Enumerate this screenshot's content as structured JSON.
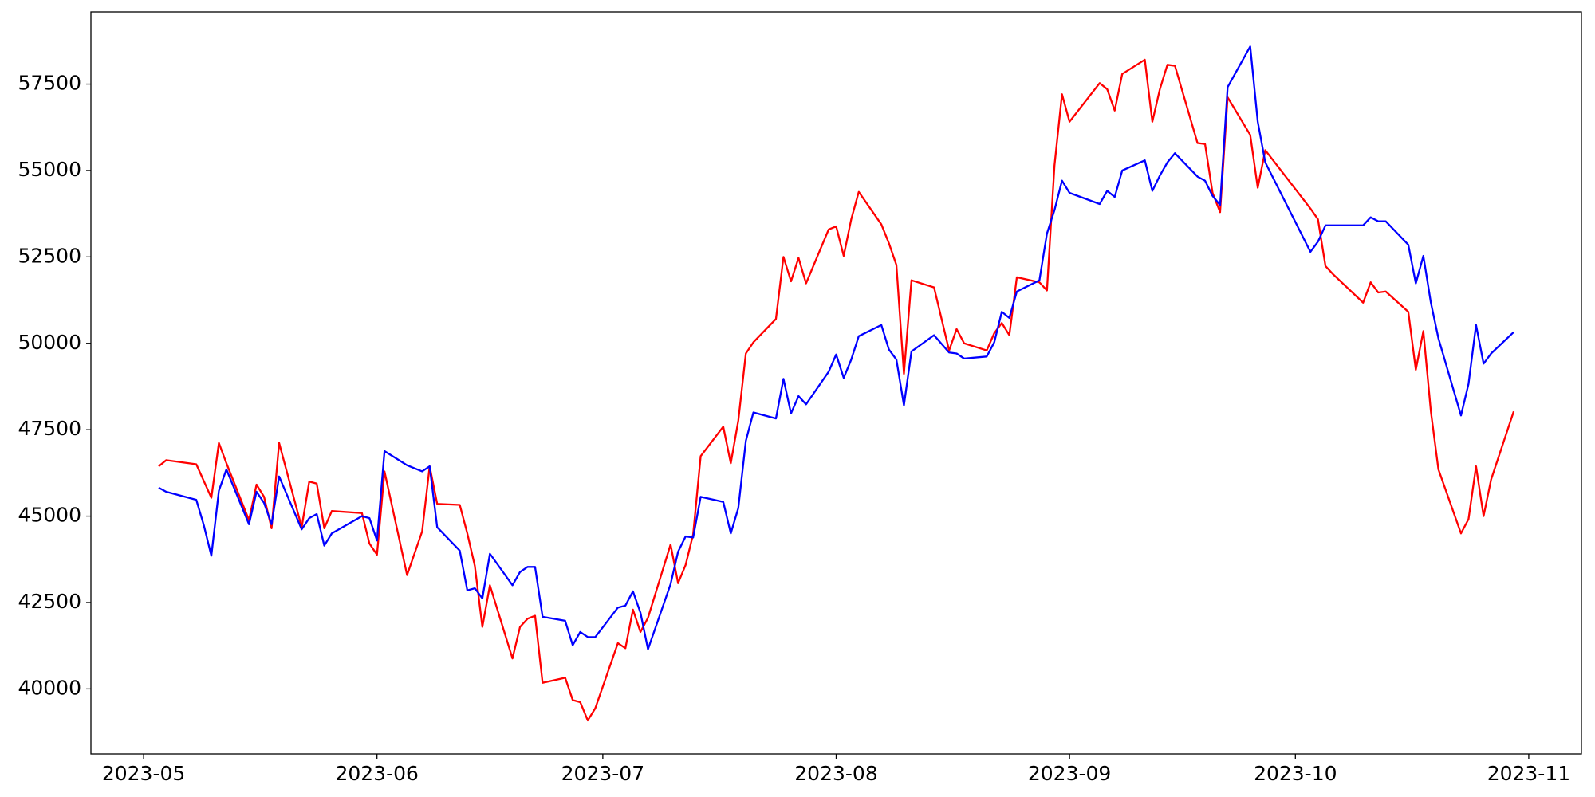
{
  "chart_data": {
    "type": "line",
    "x": [
      "2023-05-03",
      "2023-05-04",
      "2023-05-08",
      "2023-05-09",
      "2023-05-10",
      "2023-05-11",
      "2023-05-12",
      "2023-05-15",
      "2023-05-16",
      "2023-05-17",
      "2023-05-18",
      "2023-05-19",
      "2023-05-22",
      "2023-05-23",
      "2023-05-24",
      "2023-05-25",
      "2023-05-26",
      "2023-05-30",
      "2023-05-31",
      "2023-06-01",
      "2023-06-02",
      "2023-06-05",
      "2023-06-07",
      "2023-06-08",
      "2023-06-09",
      "2023-06-12",
      "2023-06-13",
      "2023-06-14",
      "2023-06-15",
      "2023-06-16",
      "2023-06-19",
      "2023-06-20",
      "2023-06-21",
      "2023-06-22",
      "2023-06-23",
      "2023-06-26",
      "2023-06-27",
      "2023-06-28",
      "2023-06-29",
      "2023-06-30",
      "2023-07-03",
      "2023-07-04",
      "2023-07-05",
      "2023-07-06",
      "2023-07-07",
      "2023-07-10",
      "2023-07-11",
      "2023-07-12",
      "2023-07-13",
      "2023-07-14",
      "2023-07-17",
      "2023-07-18",
      "2023-07-19",
      "2023-07-20",
      "2023-07-21",
      "2023-07-24",
      "2023-07-25",
      "2023-07-26",
      "2023-07-27",
      "2023-07-28",
      "2023-07-31",
      "2023-08-01",
      "2023-08-02",
      "2023-08-03",
      "2023-08-04",
      "2023-08-07",
      "2023-08-08",
      "2023-08-09",
      "2023-08-10",
      "2023-08-11",
      "2023-08-14",
      "2023-08-16",
      "2023-08-17",
      "2023-08-18",
      "2023-08-21",
      "2023-08-22",
      "2023-08-23",
      "2023-08-24",
      "2023-08-25",
      "2023-08-28",
      "2023-08-29",
      "2023-08-30",
      "2023-08-31",
      "2023-09-01",
      "2023-09-05",
      "2023-09-06",
      "2023-09-07",
      "2023-09-08",
      "2023-09-11",
      "2023-09-12",
      "2023-09-13",
      "2023-09-14",
      "2023-09-15",
      "2023-09-18",
      "2023-09-19",
      "2023-09-20",
      "2023-09-21",
      "2023-09-22",
      "2023-09-25",
      "2023-09-26",
      "2023-09-27",
      "2023-10-03",
      "2023-10-04",
      "2023-10-05",
      "2023-10-06",
      "2023-10-10",
      "2023-10-11",
      "2023-10-12",
      "2023-10-13",
      "2023-10-16",
      "2023-10-17",
      "2023-10-18",
      "2023-10-19",
      "2023-10-20",
      "2023-10-23",
      "2023-10-24",
      "2023-10-25",
      "2023-10-26",
      "2023-10-27",
      "2023-10-30"
    ],
    "series": [
      {
        "color": "#ff0000",
        "values": [
          46441,
          46618,
          46500,
          46015,
          45530,
          47118,
          46530,
          44883,
          45912,
          45559,
          44648,
          47118,
          44677,
          46000,
          45941,
          44648,
          45147,
          45088,
          44206,
          43883,
          46294,
          43294,
          44559,
          46441,
          45353,
          45324,
          44500,
          43559,
          41794,
          43000,
          40882,
          41794,
          42030,
          42118,
          40177,
          40324,
          39677,
          39618,
          39088,
          39441,
          41324,
          41177,
          42294,
          41647,
          42059,
          44177,
          43059,
          43588,
          44471,
          46735,
          47588,
          46530,
          47765,
          49706,
          50030,
          50706,
          52500,
          51794,
          52471,
          51735,
          53294,
          53382,
          52530,
          53588,
          54382,
          53441,
          52900,
          52265,
          49118,
          51824,
          51618,
          49794,
          50412,
          50000,
          49794,
          50294,
          50588,
          50235,
          51912,
          51765,
          51530,
          55147,
          57206,
          56412,
          57529,
          57353,
          56735,
          57794,
          58206,
          56412,
          57353,
          58059,
          58029,
          55794,
          55765,
          54353,
          53794,
          57118,
          56029,
          54500,
          55588,
          53900,
          53588,
          52235,
          52000,
          51176,
          51765,
          51471,
          51500,
          50912,
          49235,
          50353,
          48029,
          46353,
          44500,
          44912,
          46441,
          45000,
          46059,
          48029
        ]
      },
      {
        "color": "#0000ff",
        "values": [
          45824,
          45706,
          45471,
          44735,
          43853,
          45735,
          46353,
          44765,
          45706,
          45382,
          44765,
          46147,
          44618,
          44941,
          45059,
          44147,
          44500,
          45000,
          44941,
          44294,
          46882,
          46471,
          46294,
          46441,
          44677,
          44000,
          42853,
          42912,
          42618,
          43912,
          43000,
          43382,
          43530,
          43530,
          42088,
          41971,
          41265,
          41647,
          41500,
          41500,
          42353,
          42412,
          42824,
          42206,
          41147,
          43030,
          43971,
          44412,
          44382,
          45559,
          45412,
          44500,
          45235,
          47176,
          48000,
          47824,
          48971,
          47971,
          48471,
          48235,
          49177,
          49677,
          49000,
          49530,
          50206,
          50530,
          49824,
          49530,
          48206,
          49765,
          50235,
          49735,
          49706,
          49559,
          49618,
          50030,
          50912,
          50735,
          51500,
          51824,
          53177,
          53853,
          54706,
          54353,
          54030,
          54412,
          54235,
          55000,
          55294,
          54412,
          54853,
          55235,
          55500,
          54824,
          54706,
          54265,
          54000,
          57412,
          58588,
          56412,
          55235,
          52647,
          52941,
          53412,
          53412,
          53412,
          53647,
          53530,
          53530,
          52853,
          51735,
          52529,
          51176,
          50147,
          47912,
          48824,
          50529,
          49412,
          49706,
          50324
        ]
      }
    ],
    "xlim": [
      "2023-04-24",
      "2023-11-08"
    ],
    "xticks": [
      {
        "value": "2023-05-01",
        "label": "2023-05"
      },
      {
        "value": "2023-06-01",
        "label": "2023-06"
      },
      {
        "value": "2023-07-01",
        "label": "2023-07"
      },
      {
        "value": "2023-08-01",
        "label": "2023-08"
      },
      {
        "value": "2023-09-01",
        "label": "2023-09"
      },
      {
        "value": "2023-10-01",
        "label": "2023-10"
      },
      {
        "value": "2023-11-01",
        "label": "2023-11"
      }
    ],
    "ylim": [
      38118,
      59588
    ],
    "yticks": [
      40000,
      42500,
      45000,
      47500,
      50000,
      52500,
      55000,
      57500
    ],
    "grid": false
  }
}
